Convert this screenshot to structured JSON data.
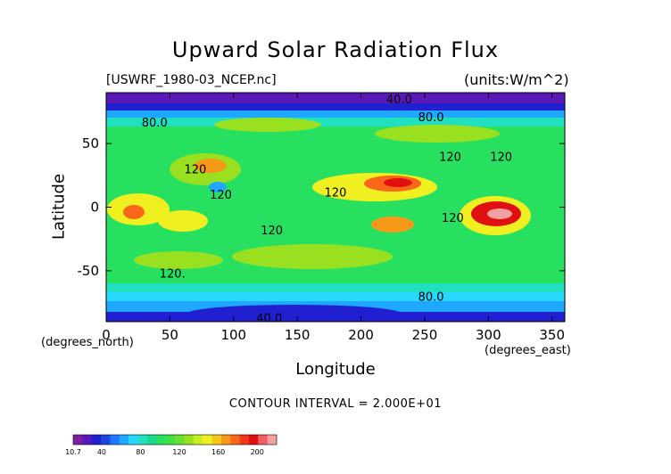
{
  "chart_data": {
    "type": "heatmap",
    "title": "Upward Solar Radiation Flux",
    "file_label": "[USWRF_1980-03_NCEP.nc]",
    "units_label": "(units:W/m^2)",
    "xlabel": "Longitude",
    "ylabel": "Latitude",
    "x_unit_label": "(degrees_east)",
    "y_unit_label": "(degrees_north)",
    "xlim": [
      0,
      360
    ],
    "ylim": [
      -90,
      90
    ],
    "x_ticks": [
      0,
      50,
      100,
      150,
      200,
      250,
      300,
      350
    ],
    "y_ticks": [
      -50,
      0,
      50
    ],
    "contour_interval_text": "CONTOUR INTERVAL = 2.000E+01",
    "contour_labels": [
      {
        "text": "40.0",
        "x": 230,
        "y": 85
      },
      {
        "text": "80.0",
        "x": 38,
        "y": 67
      },
      {
        "text": "80.0",
        "x": 255,
        "y": 71
      },
      {
        "text": "120",
        "x": 70,
        "y": 30
      },
      {
        "text": "120",
        "x": 90,
        "y": 10
      },
      {
        "text": "120",
        "x": 180,
        "y": 12
      },
      {
        "text": "120",
        "x": 310,
        "y": 40
      },
      {
        "text": "120",
        "x": 272,
        "y": -8
      },
      {
        "text": "120",
        "x": 130,
        "y": -18
      },
      {
        "text": "120",
        "x": 270,
        "y": 40
      },
      {
        "text": "120.",
        "x": 52,
        "y": -52
      },
      {
        "text": "80.0",
        "x": 255,
        "y": -70
      },
      {
        "text": "40.0",
        "x": 128,
        "y": -87
      }
    ],
    "colorbar": {
      "colors": [
        "#7a1fa2",
        "#5a18b8",
        "#2020d0",
        "#1848e0",
        "#1e78ff",
        "#1ea8ff",
        "#28d8ff",
        "#20e0c0",
        "#18d890",
        "#28e060",
        "#40e040",
        "#68e030",
        "#98e020",
        "#c8f020",
        "#f0f020",
        "#f8c818",
        "#f89818",
        "#f86818",
        "#f03818",
        "#e01010",
        "#f06060",
        "#f8a0a0"
      ],
      "tick_labels": [
        "10.7",
        "40",
        "80",
        "120",
        "160",
        "200"
      ],
      "tick_values": [
        10.7,
        40,
        80,
        120,
        160,
        200
      ],
      "range": [
        10.7,
        220
      ]
    },
    "colors": {
      "pole_high": "#5a18b8",
      "very_low": "#2020d0",
      "low": "#1ea8ff",
      "mid_low": "#28d8ff",
      "mid": "#20e0c0",
      "medium": "#28e060",
      "medium_high": "#98e020",
      "high": "#f0f020",
      "very_high": "#f89818",
      "extreme": "#e01010",
      "peak": "#f0a0a0"
    },
    "regions": [
      {
        "name": "north-pole-band",
        "level": 20
      },
      {
        "name": "south-pole-band",
        "level": 40
      },
      {
        "name": "tropical-peak-south-america",
        "level": 210
      },
      {
        "name": "african-high",
        "level": 180
      },
      {
        "name": "pacific-high",
        "level": 180
      }
    ]
  }
}
